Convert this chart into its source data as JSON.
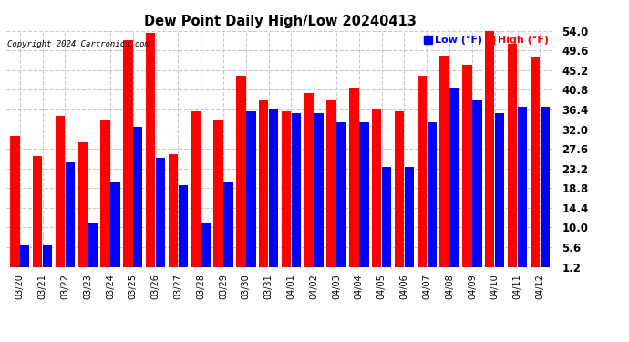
{
  "title": "Dew Point Daily High/Low 20240413",
  "copyright": "Copyright 2024 Cartronics.com",
  "legend_low": "Low (°F)",
  "legend_high": "High (°F)",
  "low_color": "#0000ff",
  "high_color": "#ff0000",
  "bg_color": "#ffffff",
  "grid_color": "#c8c8c8",
  "ylim": [
    1.2,
    54.0
  ],
  "yticks": [
    1.2,
    5.6,
    10.0,
    14.4,
    18.8,
    23.2,
    27.6,
    32.0,
    36.4,
    40.8,
    45.2,
    49.6,
    54.0
  ],
  "dates": [
    "03/20",
    "03/21",
    "03/22",
    "03/23",
    "03/24",
    "03/25",
    "03/26",
    "03/27",
    "03/28",
    "03/29",
    "03/30",
    "03/31",
    "04/01",
    "04/02",
    "04/03",
    "04/04",
    "04/05",
    "04/06",
    "04/07",
    "04/08",
    "04/09",
    "04/10",
    "04/11",
    "04/12"
  ],
  "high_values": [
    30.5,
    26.0,
    35.0,
    29.0,
    34.0,
    52.0,
    53.5,
    26.5,
    36.0,
    34.0,
    44.0,
    38.5,
    36.0,
    40.0,
    38.5,
    41.0,
    36.5,
    36.0,
    44.0,
    48.5,
    46.5,
    54.0,
    51.0,
    48.0
  ],
  "low_values": [
    6.0,
    6.0,
    24.5,
    11.0,
    20.0,
    32.5,
    25.5,
    19.5,
    11.0,
    20.0,
    36.0,
    36.5,
    35.5,
    35.5,
    33.5,
    33.5,
    23.5,
    23.5,
    33.5,
    41.0,
    38.5,
    35.5,
    37.0,
    37.0
  ]
}
